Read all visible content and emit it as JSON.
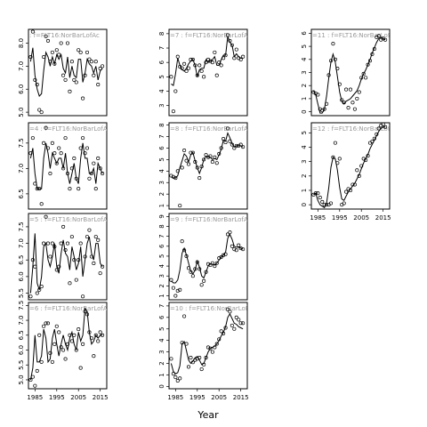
{
  "chart_data": [
    {
      "type": "scatter",
      "title": ": f=FLT16:NorBarLofAc",
      "xlim": [
        1982,
        2018
      ],
      "x": [
        1983,
        1984,
        1985,
        1986,
        1987,
        1988,
        1989,
        1990,
        1991,
        1992,
        1993,
        1994,
        1995,
        1996,
        1997,
        1998,
        1999,
        2000,
        2001,
        2002,
        2003,
        2004,
        2005,
        2006,
        2007,
        2008,
        2009,
        2010,
        2011,
        2012,
        2013,
        2014,
        2015,
        2016
      ],
      "values": [
        7.4,
        8.5,
        6.4,
        6.2,
        5.1,
        5.0,
        7.4,
        8.3,
        8.1,
        7.2,
        7.6,
        7.1,
        7.7,
        7.5,
        8.0,
        6.6,
        6.4,
        8.0,
        5.9,
        7.2,
        6.4,
        6.3,
        7.7,
        7.6,
        5.6,
        6.6,
        7.6,
        7.3,
        7.2,
        6.6,
        7.2,
        6.2,
        6.9,
        7.0
      ],
      "fit": [
        7.2,
        7.8,
        6.6,
        6.0,
        5.7,
        5.8,
        6.8,
        7.6,
        7.4,
        7.0,
        7.4,
        7.1,
        7.5,
        7.3,
        7.5,
        6.9,
        6.7,
        7.4,
        6.5,
        7.0,
        6.6,
        6.5,
        7.3,
        7.3,
        6.3,
        6.7,
        7.3,
        7.1,
        7.0,
        6.7,
        7.0,
        6.4,
        6.8,
        6.9
      ],
      "ylim": [
        4.85,
        8.6
      ],
      "yticks": [
        {
          "value": 5,
          "label": "5.0"
        },
        {
          "value": 6,
          "label": "6.0"
        },
        {
          "value": 7,
          "label": "7.0"
        },
        {
          "value": 8,
          "label": "8.0"
        }
      ]
    },
    {
      "type": "scatter",
      "title": "=4 : f=FLT16:NorBarLofAc",
      "xlim": [
        1982,
        2018
      ],
      "x": [
        1983,
        1984,
        1985,
        1986,
        1987,
        1988,
        1989,
        1990,
        1991,
        1992,
        1993,
        1994,
        1995,
        1996,
        1997,
        1998,
        1999,
        2000,
        2001,
        2002,
        2003,
        2004,
        2005,
        2006,
        2007,
        2008,
        2009,
        2010,
        2011,
        2012,
        2013,
        2014,
        2015,
        2016
      ],
      "values": [
        7.3,
        7.6,
        6.7,
        6.6,
        6.6,
        6.3,
        7.5,
        7.8,
        7.4,
        6.9,
        7.5,
        7.3,
        7.1,
        7.4,
        7.3,
        7.0,
        7.6,
        6.9,
        6.6,
        7.0,
        7.2,
        6.8,
        6.6,
        7.4,
        7.6,
        7.3,
        7.4,
        6.8,
        6.9,
        7.1,
        6.6,
        7.2,
        7.0,
        6.9
      ],
      "fit": [
        7.2,
        7.4,
        6.9,
        6.6,
        6.6,
        6.6,
        7.2,
        7.5,
        7.3,
        7.0,
        7.3,
        7.2,
        7.1,
        7.2,
        7.2,
        7.0,
        7.3,
        6.9,
        6.7,
        6.9,
        7.1,
        6.8,
        6.7,
        7.2,
        7.5,
        7.2,
        7.2,
        6.9,
        6.9,
        7.0,
        6.7,
        7.1,
        7.0,
        6.9
      ],
      "ylim": [
        6.2,
        7.9
      ],
      "yticks": [
        6.5,
        {
          "value": 7,
          "label": "7.0"
        },
        7.5
      ]
    },
    {
      "type": "scatter",
      "title": "=5 : f=FLT16:NorBarLofAc",
      "xlim": [
        1982,
        2018
      ],
      "x": [
        1983,
        1984,
        1985,
        1986,
        1987,
        1988,
        1989,
        1990,
        1991,
        1992,
        1993,
        1994,
        1995,
        1996,
        1997,
        1998,
        1999,
        2000,
        2001,
        2002,
        2003,
        2004,
        2005,
        2006,
        2007,
        2008,
        2009,
        2010,
        2011,
        2012,
        2013,
        2014,
        2015,
        2016
      ],
      "values": [
        5.4,
        6.5,
        6.3,
        5.5,
        5.6,
        5.7,
        7.0,
        7.8,
        7.0,
        6.6,
        7.0,
        6.9,
        6.2,
        6.3,
        7.0,
        7.5,
        6.8,
        7.0,
        5.8,
        7.2,
        6.5,
        5.9,
        6.5,
        7.0,
        5.4,
        6.6,
        7.2,
        7.4,
        6.6,
        6.4,
        7.2,
        7.1,
        6.1,
        6.3
      ],
      "fit": [
        5.5,
        6.3,
        7.3,
        5.8,
        5.6,
        6.0,
        6.9,
        7.0,
        6.5,
        6.3,
        6.6,
        7.0,
        6.3,
        6.1,
        6.7,
        7.1,
        6.7,
        6.6,
        6.2,
        6.9,
        6.6,
        6.2,
        6.4,
        6.9,
        6.0,
        6.5,
        7.0,
        7.2,
        6.7,
        6.5,
        7.0,
        7.0,
        6.4,
        6.3
      ],
      "ylim": [
        5.3,
        7.9
      ],
      "yticks": [
        5.5,
        {
          "value": 6,
          "label": "6.0"
        },
        6.5,
        {
          "value": 7,
          "label": "7.0"
        },
        7.5
      ]
    },
    {
      "type": "scatter",
      "title": "=6 : f=FLT16:NorBarLofAc",
      "xlim": [
        1982,
        2018
      ],
      "x": [
        1983,
        1984,
        1985,
        1986,
        1987,
        1988,
        1989,
        1990,
        1991,
        1992,
        1993,
        1994,
        1995,
        1996,
        1997,
        1998,
        1999,
        2000,
        2001,
        2002,
        2003,
        2004,
        2005,
        2006,
        2007,
        2008,
        2009,
        2010,
        2011,
        2012,
        2013,
        2014,
        2015,
        2016
      ],
      "values": [
        5.0,
        5.1,
        4.8,
        5.3,
        6.5,
        5.6,
        6.8,
        6.9,
        6.9,
        5.9,
        5.6,
        6.2,
        6.8,
        6.6,
        6.1,
        6.0,
        5.7,
        6.2,
        6.5,
        6.3,
        6.5,
        6.0,
        6.7,
        5.4,
        6.2,
        7.3,
        7.2,
        6.6,
        6.4,
        5.8,
        6.5,
        6.3,
        6.6,
        6.5
      ],
      "fit": [
        5.0,
        5.4,
        6.5,
        5.6,
        5.6,
        5.8,
        6.7,
        6.4,
        5.6,
        5.7,
        6.4,
        6.7,
        6.2,
        5.8,
        6.2,
        6.5,
        6.2,
        6.0,
        6.4,
        6.6,
        6.2,
        6.0,
        6.6,
        6.3,
        6.5,
        7.4,
        7.3,
        6.6,
        6.2,
        6.3,
        6.5,
        6.4,
        6.5,
        6.5
      ],
      "ylim": [
        4.7,
        7.6
      ],
      "yticks": [
        {
          "value": 5,
          "label": "5.0"
        },
        5.5,
        {
          "value": 6,
          "label": "6.0"
        },
        6.5,
        {
          "value": 7,
          "label": "7.0"
        },
        7.5
      ],
      "xticks": [
        1985,
        1995,
        2005,
        2015
      ]
    },
    {
      "type": "scatter",
      "title": "=7 : f=FLT16:NorBarLofAc",
      "xlim": [
        1982,
        2018
      ],
      "x": [
        1983,
        1984,
        1985,
        1986,
        1987,
        1988,
        1989,
        1990,
        1991,
        1992,
        1993,
        1994,
        1995,
        1996,
        1997,
        1998,
        1999,
        2000,
        2001,
        2002,
        2003,
        2004,
        2005,
        2006,
        2007,
        2008,
        2009,
        2010,
        2011,
        2012,
        2013,
        2014,
        2015,
        2016
      ],
      "values": [
        5.0,
        2.6,
        4.0,
        6.4,
        5.7,
        5.6,
        5.9,
        5.4,
        5.6,
        6.2,
        6.2,
        5.8,
        5.1,
        5.8,
        5.4,
        5.0,
        6.0,
        6.2,
        6.1,
        6.0,
        6.7,
        5.1,
        6.0,
        5.8,
        6.3,
        6.5,
        7.9,
        7.5,
        7.2,
        6.3,
        6.9,
        6.3,
        6.2,
        6.4
      ],
      "fit": [
        4.5,
        4.4,
        5.2,
        6.3,
        5.8,
        5.5,
        5.4,
        5.6,
        5.9,
        6.1,
        6.2,
        5.8,
        5.0,
        5.5,
        5.6,
        5.6,
        6.2,
        6.0,
        6.1,
        6.2,
        6.4,
        5.8,
        5.8,
        6.2,
        6.5,
        6.5,
        7.8,
        7.4,
        7.2,
        6.4,
        6.6,
        6.4,
        6.3,
        6.3
      ],
      "ylim": [
        2.3,
        8.3
      ],
      "yticks": [
        3,
        4,
        5,
        6,
        7,
        8
      ]
    },
    {
      "type": "scatter",
      "title": "=8 : f=FLT16:NorBarLofAc",
      "xlim": [
        1982,
        2018
      ],
      "x": [
        1983,
        1984,
        1985,
        1986,
        1987,
        1988,
        1989,
        1990,
        1991,
        1992,
        1993,
        1994,
        1995,
        1996,
        1997,
        1998,
        1999,
        2000,
        2001,
        2002,
        2003,
        2004,
        2005,
        2006,
        2007,
        2008,
        2009,
        2010,
        2011,
        2012,
        2013,
        2014,
        2015,
        2016
      ],
      "values": [
        3.6,
        3.5,
        3.4,
        4.0,
        1.0,
        4.3,
        5.8,
        4.9,
        4.6,
        5.6,
        5.6,
        4.8,
        4.3,
        3.4,
        4.4,
        5.0,
        5.4,
        5.2,
        5.3,
        4.8,
        5.2,
        4.7,
        5.5,
        6.0,
        6.8,
        6.5,
        7.7,
        6.6,
        6.3,
        6.0,
        6.2,
        6.2,
        6.3,
        6.1
      ],
      "fit": [
        3.5,
        3.4,
        3.4,
        3.6,
        4.3,
        4.9,
        5.5,
        5.3,
        4.8,
        5.4,
        5.6,
        4.9,
        4.3,
        3.8,
        4.3,
        5.0,
        5.3,
        5.2,
        5.2,
        5.0,
        5.1,
        5.0,
        5.4,
        5.9,
        6.7,
        6.6,
        7.3,
        6.9,
        6.4,
        6.1,
        6.2,
        6.2,
        6.2,
        6.1
      ],
      "ylim": [
        0.7,
        8.2
      ],
      "yticks": [
        1,
        2,
        3,
        4,
        5,
        6,
        7,
        8
      ]
    },
    {
      "type": "scatter",
      "title": "=9 : f=FLT16:NorBarLofAc",
      "xlim": [
        1982,
        2018
      ],
      "x": [
        1983,
        1984,
        1985,
        1986,
        1987,
        1988,
        1989,
        1990,
        1991,
        1992,
        1993,
        1994,
        1995,
        1996,
        1997,
        1998,
        1999,
        2000,
        2001,
        2002,
        2003,
        2004,
        2005,
        2006,
        2007,
        2008,
        2009,
        2010,
        2011,
        2012,
        2013,
        2014,
        2015,
        2016
      ],
      "values": [
        2.6,
        1.8,
        1.0,
        1.5,
        1.6,
        6.5,
        5.6,
        5.0,
        3.8,
        3.4,
        3.0,
        3.7,
        4.4,
        3.7,
        2.1,
        2.5,
        3.4,
        4.2,
        4.1,
        4.3,
        4.0,
        4.3,
        4.8,
        4.9,
        5.1,
        5.2,
        7.2,
        7.4,
        6.0,
        5.7,
        5.6,
        6.1,
        5.8,
        5.7
      ],
      "fit": [
        2.5,
        2.3,
        2.3,
        2.6,
        3.6,
        5.3,
        5.8,
        5.1,
        4.3,
        3.5,
        3.2,
        3.6,
        4.5,
        3.9,
        3.0,
        2.8,
        3.4,
        4.0,
        4.2,
        4.2,
        4.1,
        4.3,
        4.6,
        4.9,
        5.1,
        5.4,
        6.8,
        7.2,
        6.7,
        6.0,
        5.9,
        5.9,
        5.8,
        5.7
      ],
      "ylim": [
        0.6,
        9.3
      ],
      "yticks": [
        1,
        2,
        3,
        4,
        5,
        6,
        7,
        8,
        9
      ]
    },
    {
      "type": "scatter",
      "title": "=10 : f=FLT16:NorBarLofAc",
      "xlim": [
        1982,
        2018
      ],
      "x": [
        1983,
        1984,
        1985,
        1986,
        1987,
        1988,
        1989,
        1990,
        1991,
        1992,
        1993,
        1994,
        1995,
        1996,
        1997,
        1998,
        1999,
        2000,
        2001,
        2002,
        2003,
        2004,
        2005,
        2006,
        2007,
        2008,
        2009,
        2010,
        2011,
        2012,
        2013,
        2014,
        2015,
        2016
      ],
      "values": [
        2.4,
        1.1,
        0.8,
        0.5,
        0.7,
        3.8,
        6.1,
        3.7,
        1.7,
        2.5,
        2.1,
        2.3,
        2.4,
        2.5,
        1.5,
        1.9,
        2.5,
        3.4,
        3.3,
        3.0,
        3.4,
        3.7,
        4.1,
        4.8,
        4.6,
        5.1,
        6.7,
        6.5,
        5.3,
        5.0,
        6.0,
        5.8,
        5.5,
        5.5
      ],
      "fit": [
        2.0,
        1.3,
        1.1,
        1.2,
        1.8,
        3.7,
        3.9,
        3.1,
        2.3,
        2.0,
        2.2,
        2.5,
        2.6,
        2.3,
        1.9,
        2.0,
        2.5,
        3.0,
        3.3,
        3.4,
        3.5,
        3.7,
        4.0,
        4.4,
        4.7,
        5.2,
        6.0,
        6.3,
        5.9,
        5.5,
        5.4,
        5.2,
        5.1,
        5.0
      ],
      "ylim": [
        -0.2,
        7.3
      ],
      "yticks": [
        0,
        1,
        2,
        3,
        4,
        5,
        6,
        7
      ],
      "xticks": [
        1985,
        1995,
        2005,
        2015
      ],
      "xlabel": "Year"
    },
    {
      "type": "scatter",
      "title": "=11 : f=FLT16:NorBarLofAc",
      "xlim": [
        1982,
        2018
      ],
      "x": [
        1983,
        1984,
        1985,
        1986,
        1987,
        1988,
        1989,
        1990,
        1991,
        1992,
        1993,
        1994,
        1995,
        1996,
        1997,
        1998,
        1999,
        2000,
        2001,
        2002,
        2003,
        2004,
        2005,
        2006,
        2007,
        2008,
        2009,
        2010,
        2011,
        2012,
        2013,
        2014,
        2015,
        2016
      ],
      "values": [
        1.5,
        1.4,
        1.3,
        0.2,
        0.1,
        0.2,
        0.6,
        2.8,
        3.9,
        5.2,
        4.0,
        3.3,
        2.1,
        0.9,
        0.7,
        1.7,
        0.3,
        1.7,
        0.7,
        0.2,
        1.0,
        1.5,
        2.6,
        2.9,
        2.6,
        3.6,
        3.9,
        4.4,
        4.8,
        5.7,
        5.8,
        5.5,
        5.6,
        5.5
      ],
      "fit": [
        1.6,
        1.3,
        0.6,
        -0.1,
        -0.1,
        0.2,
        1.2,
        2.6,
        3.8,
        4.4,
        3.8,
        2.7,
        1.5,
        0.8,
        0.6,
        0.8,
        0.9,
        1.0,
        1.2,
        1.4,
        1.6,
        2.0,
        2.5,
        2.9,
        3.2,
        3.6,
        4.0,
        4.5,
        4.9,
        5.3,
        5.6,
        5.7,
        5.6,
        5.5
      ],
      "ylim": [
        -0.3,
        6.3
      ],
      "yticks": [
        0,
        1,
        2,
        3,
        4,
        5,
        6
      ]
    },
    {
      "type": "scatter",
      "title": "=12 : f=FLT16:NorBarLofAc",
      "xlim": [
        1982,
        2018
      ],
      "x": [
        1983,
        1984,
        1985,
        1986,
        1987,
        1988,
        1989,
        1990,
        1991,
        1992,
        1993,
        1994,
        1995,
        1996,
        1997,
        1998,
        1999,
        2000,
        2001,
        2002,
        2003,
        2004,
        2005,
        2006,
        2007,
        2008,
        2009,
        2010,
        2011,
        2012,
        2013,
        2014,
        2015,
        2016
      ],
      "values": [
        0.7,
        0.8,
        0.8,
        0.5,
        0.2,
        0.0,
        0.0,
        0.0,
        0.1,
        3.3,
        4.3,
        2.9,
        3.2,
        0.0,
        0.1,
        0.9,
        1.1,
        1.0,
        1.4,
        1.4,
        2.4,
        2.0,
        2.7,
        3.2,
        3.1,
        3.4,
        4.3,
        4.4,
        4.6,
        4.9,
        5.3,
        5.5,
        5.6,
        5.4
      ],
      "fit": [
        0.7,
        0.8,
        0.3,
        0.0,
        -0.1,
        -0.2,
        0.1,
        1.2,
        2.6,
        3.3,
        3.2,
        2.4,
        1.2,
        0.4,
        0.3,
        0.6,
        0.9,
        1.1,
        1.3,
        1.5,
        1.8,
        2.1,
        2.5,
        2.9,
        3.2,
        3.5,
        3.9,
        4.2,
        4.5,
        4.8,
        5.1,
        5.3,
        5.4,
        5.4
      ],
      "ylim": [
        -0.3,
        5.7
      ],
      "yticks": [
        0,
        1,
        2,
        3,
        4,
        5
      ],
      "xticks": [
        1985,
        1995,
        2005,
        2015
      ]
    }
  ]
}
